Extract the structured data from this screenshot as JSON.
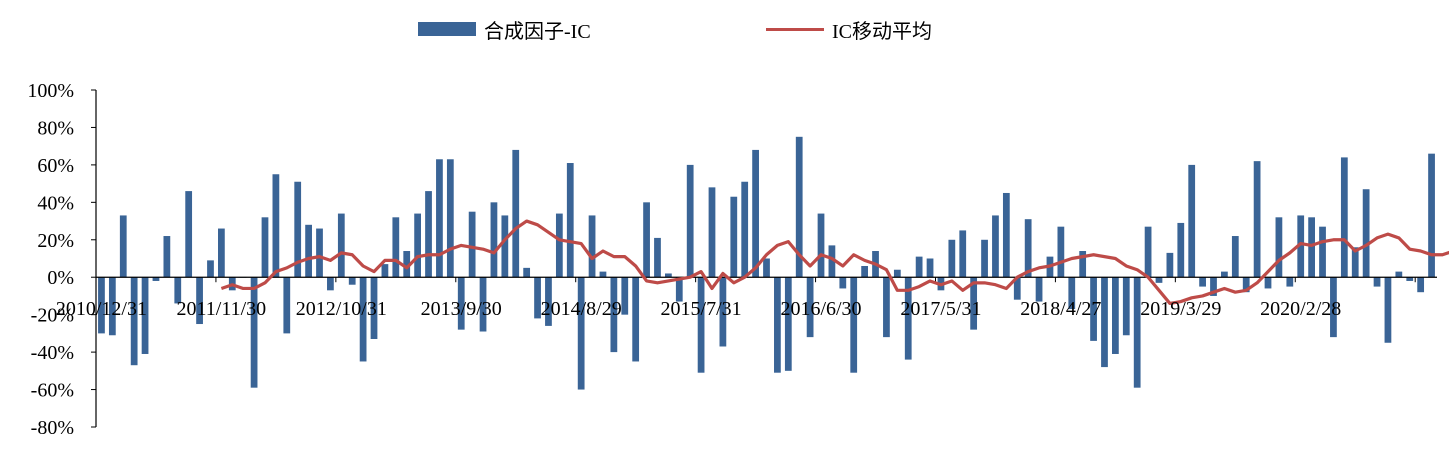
{
  "chart_data": {
    "type": "bar",
    "legend": {
      "placement": "top-center"
    },
    "colors": {
      "bar": "#3A6496",
      "line": "#BE4B48",
      "axis": "#000000"
    },
    "yticks": [
      "100%",
      "80%",
      "60%",
      "40%",
      "20%",
      "0%",
      "-20%",
      "-40%",
      "-60%",
      "-80%"
    ],
    "ylim": [
      -80,
      100
    ],
    "xtick_labels": [
      "2010/12/31",
      "2011/11/30",
      "2012/10/31",
      "2013/9/30",
      "2014/8/29",
      "2015/7/31",
      "2016/6/30",
      "2017/5/31",
      "2018/4/27",
      "2019/3/29",
      "2020/2/28"
    ],
    "xtick_every": 11,
    "grid": false,
    "series": [
      {
        "name": "合成因子-IC",
        "type": "bar",
        "values": [
          -30,
          -31,
          33,
          -47,
          -41,
          -2,
          22,
          -14,
          46,
          -25,
          9,
          26,
          -7,
          0,
          -59,
          32,
          55,
          -30,
          51,
          28,
          26,
          -7,
          34,
          -4,
          -45,
          -33,
          7,
          32,
          14,
          34,
          46,
          63,
          63,
          -28,
          35,
          -29,
          40,
          33,
          68,
          5,
          -22,
          -26,
          34,
          61,
          -60,
          33,
          3,
          -40,
          -20,
          -45,
          40,
          21,
          2,
          -13,
          60,
          -51,
          48,
          -37,
          43,
          51,
          68,
          10,
          -51,
          -50,
          75,
          -32,
          34,
          17,
          -6,
          -51,
          6,
          14,
          -32,
          4,
          -44,
          11,
          10,
          -7,
          20,
          25,
          -28,
          20,
          33,
          45,
          -12,
          31,
          -13,
          11,
          27,
          -17,
          14,
          -34,
          -48,
          -41,
          -31,
          -59,
          27,
          -3,
          13,
          29,
          60,
          -5,
          -10,
          3,
          22,
          -8,
          62,
          -6,
          32,
          -5,
          33,
          32,
          27,
          -32,
          64,
          16,
          47,
          -5,
          -35,
          3,
          -2,
          -8,
          66
        ],
        "xlabel": "",
        "ylabel": ""
      },
      {
        "name": "IC移动平均",
        "type": "line",
        "start_index": 11,
        "values": [
          -6,
          -4,
          -6,
          -6,
          -3,
          3,
          5,
          8,
          10,
          11,
          9,
          13,
          12,
          6,
          3,
          9,
          9,
          5,
          11,
          12,
          12,
          15,
          17,
          16,
          15,
          13,
          20,
          26,
          30,
          28,
          24,
          20,
          19,
          18,
          10,
          14,
          11,
          11,
          6,
          -2,
          -3,
          -2,
          -1,
          0,
          3,
          -6,
          2,
          -3,
          0,
          5,
          12,
          17,
          19,
          12,
          6,
          12,
          10,
          6,
          12,
          9,
          7,
          4,
          -7,
          -7,
          -5,
          -2,
          -4,
          -2,
          -7,
          -3,
          -3,
          -4,
          -6,
          0,
          3,
          5,
          6,
          8,
          10,
          11,
          12,
          11,
          10,
          6,
          4,
          0,
          -7,
          -14,
          -13,
          -11,
          -10,
          -8,
          -6,
          -8,
          -7,
          -3,
          3,
          9,
          13,
          18,
          17,
          19,
          20,
          20,
          14,
          17,
          21,
          23,
          21,
          15,
          14,
          12,
          12,
          14
        ]
      }
    ]
  }
}
